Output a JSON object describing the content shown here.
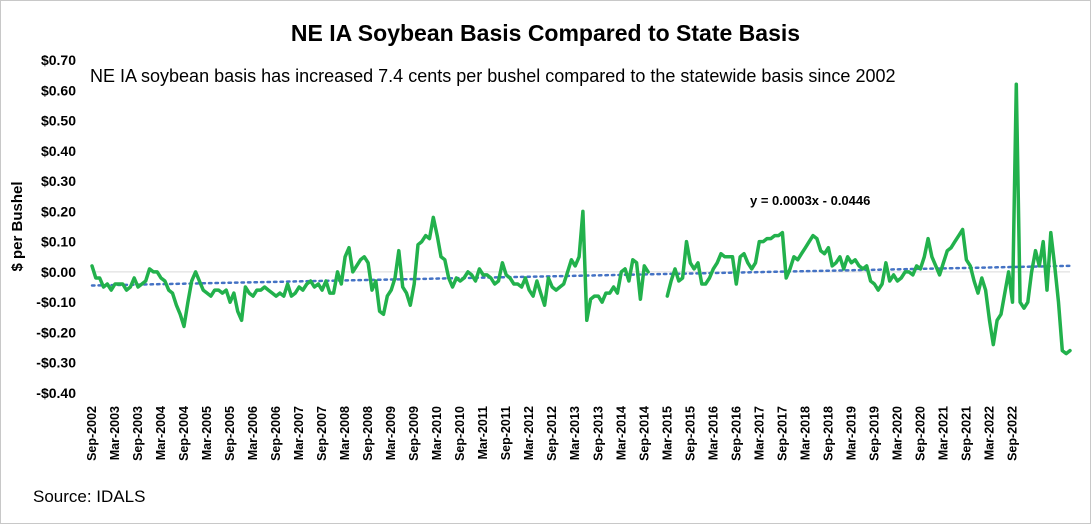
{
  "chart_data": {
    "type": "line",
    "title": "NE IA Soybean Basis Compared to State Basis",
    "annotation": "NE IA soybean basis has increased 7.4 cents per bushel compared to the statewide basis since 2002",
    "trendline_label": "y = 0.0003x - 0.0446",
    "source": "Source: IDALS",
    "ylabel": "$ per Bushel",
    "xlabel": "",
    "ylim": [
      -0.4,
      0.7
    ],
    "ytick_values": [
      -0.4,
      -0.3,
      -0.2,
      -0.1,
      0.0,
      0.1,
      0.2,
      0.3,
      0.4,
      0.5,
      0.6,
      0.7
    ],
    "ytick_labels": [
      "-$0.40",
      "-$0.30",
      "-$0.20",
      "-$0.10",
      "$0.00",
      "$0.10",
      "$0.20",
      "$0.30",
      "$0.40",
      "$0.50",
      "$0.60",
      "$0.70"
    ],
    "x_start": "Sep-2002",
    "x_end": "Feb-2023",
    "xtick_labels": [
      "Sep-2002",
      "Mar-2003",
      "Sep-2003",
      "Mar-2004",
      "Sep-2004",
      "Mar-2005",
      "Sep-2005",
      "Mar-2006",
      "Sep-2006",
      "Mar-2007",
      "Sep-2007",
      "Mar-2008",
      "Sep-2008",
      "Mar-2009",
      "Sep-2009",
      "Mar-2010",
      "Sep-2010",
      "Mar-2011",
      "Sep-2011",
      "Mar-2012",
      "Sep-2012",
      "Mar-2013",
      "Sep-2013",
      "Mar-2014",
      "Sep-2014",
      "Mar-2015",
      "Sep-2015",
      "Mar-2016",
      "Sep-2016",
      "Mar-2017",
      "Sep-2017",
      "Mar-2018",
      "Sep-2018",
      "Mar-2019",
      "Sep-2019",
      "Mar-2020",
      "Sep-2020",
      "Mar-2021",
      "Sep-2021",
      "Mar-2022",
      "Sep-2022"
    ],
    "grid": false,
    "legend": "none",
    "series": [
      {
        "color": "#22b14c",
        "note": "monthly values starting Sep-2002; null = gap in data",
        "values": [
          0.02,
          -0.02,
          -0.02,
          -0.05,
          -0.04,
          -0.06,
          -0.04,
          -0.04,
          -0.04,
          -0.06,
          -0.05,
          -0.02,
          -0.05,
          -0.04,
          -0.03,
          0.01,
          0.0,
          0.0,
          -0.02,
          -0.03,
          -0.06,
          -0.07,
          -0.11,
          -0.14,
          -0.18,
          -0.1,
          -0.03,
          0.0,
          -0.03,
          -0.06,
          -0.07,
          -0.08,
          -0.06,
          -0.06,
          -0.07,
          -0.06,
          -0.1,
          -0.07,
          -0.13,
          -0.16,
          -0.05,
          -0.07,
          -0.08,
          -0.06,
          -0.06,
          -0.05,
          -0.06,
          -0.07,
          -0.08,
          -0.07,
          -0.08,
          -0.04,
          -0.08,
          -0.07,
          -0.05,
          -0.06,
          -0.04,
          -0.03,
          -0.05,
          -0.04,
          -0.06,
          -0.03,
          -0.07,
          -0.07,
          0.0,
          -0.04,
          0.05,
          0.08,
          0.0,
          0.02,
          0.04,
          0.05,
          0.03,
          -0.06,
          -0.03,
          -0.13,
          -0.14,
          -0.08,
          -0.06,
          -0.02,
          0.07,
          -0.05,
          -0.07,
          -0.11,
          -0.04,
          0.09,
          0.1,
          0.12,
          0.11,
          0.18,
          0.12,
          0.05,
          0.04,
          -0.02,
          -0.05,
          -0.02,
          -0.03,
          -0.02,
          0.0,
          -0.01,
          -0.03,
          0.01,
          -0.01,
          -0.01,
          -0.02,
          -0.04,
          -0.03,
          0.03,
          -0.01,
          -0.02,
          -0.04,
          -0.04,
          -0.05,
          -0.02,
          -0.06,
          -0.08,
          -0.03,
          -0.07,
          -0.11,
          -0.02,
          -0.05,
          -0.06,
          -0.05,
          -0.04,
          0.0,
          0.04,
          0.02,
          0.05,
          0.2,
          -0.16,
          -0.09,
          -0.08,
          -0.08,
          -0.1,
          -0.07,
          -0.07,
          -0.05,
          -0.07,
          0.0,
          0.01,
          -0.03,
          0.04,
          0.03,
          -0.09,
          0.02,
          0.0,
          null,
          null,
          null,
          null,
          -0.08,
          -0.03,
          0.01,
          -0.03,
          -0.02,
          0.1,
          0.03,
          0.01,
          0.03,
          -0.04,
          -0.04,
          -0.02,
          0.01,
          0.03,
          0.06,
          0.05,
          0.05,
          0.05,
          -0.04,
          0.05,
          0.06,
          0.03,
          0.01,
          0.03,
          0.1,
          0.1,
          0.11,
          0.11,
          0.12,
          0.12,
          0.13,
          -0.02,
          0.01,
          0.05,
          0.04,
          0.06,
          0.08,
          0.1,
          0.12,
          0.11,
          0.07,
          0.06,
          0.08,
          0.02,
          0.03,
          0.05,
          0.01,
          0.05,
          0.03,
          0.04,
          0.02,
          0.01,
          0.02,
          -0.03,
          -0.04,
          -0.06,
          -0.04,
          0.03,
          -0.03,
          -0.01,
          -0.03,
          -0.02,
          0.0,
          0.0,
          -0.01,
          0.02,
          0.01,
          0.05,
          0.11,
          0.05,
          0.02,
          -0.01,
          0.03,
          0.07,
          0.08,
          0.1,
          0.12,
          0.14,
          0.04,
          0.02,
          -0.03,
          -0.07,
          -0.02,
          -0.06,
          -0.16,
          -0.24,
          -0.16,
          -0.14,
          -0.07,
          0.0,
          -0.1,
          0.62,
          -0.1,
          -0.12,
          -0.1,
          0.0,
          0.07,
          0.02,
          0.1,
          -0.06,
          0.13,
          0.02,
          -0.1,
          -0.26,
          -0.27,
          -0.26
        ]
      },
      {
        "type": "linear-trendline",
        "color": "#4472c4",
        "start_value": -0.045,
        "end_value": 0.02
      }
    ]
  }
}
